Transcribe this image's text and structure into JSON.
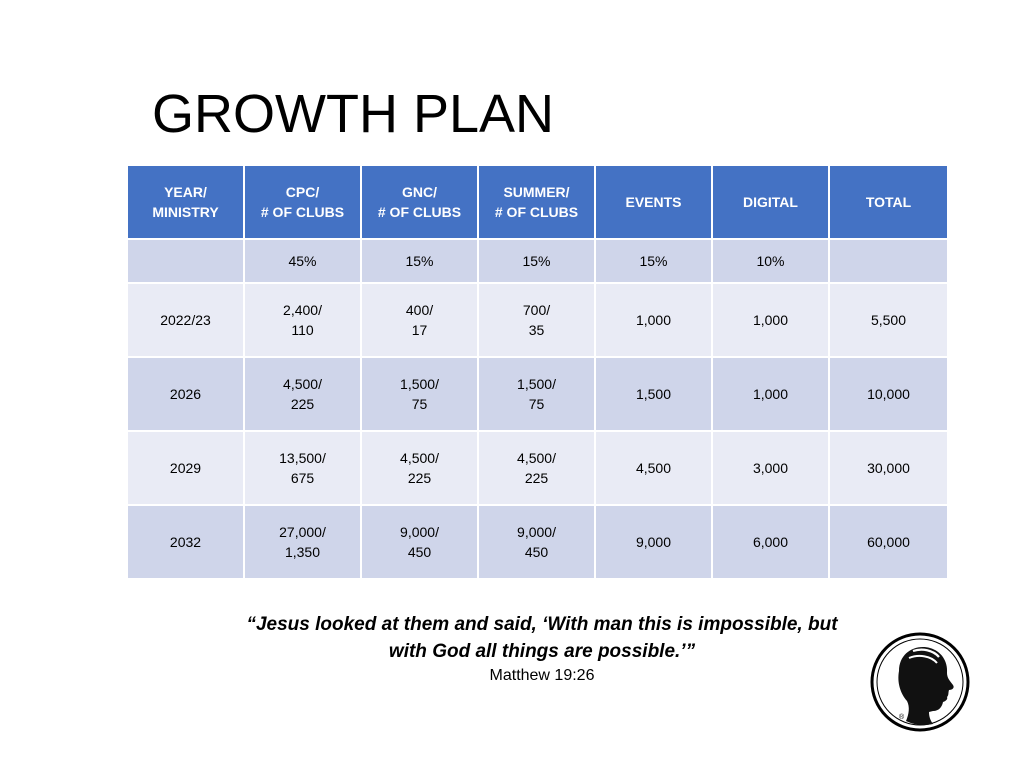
{
  "title": "GROWTH PLAN",
  "table": {
    "headers": [
      {
        "line1": "YEAR/",
        "line2": "MINISTRY"
      },
      {
        "line1": "CPC/",
        "line2": "# OF CLUBS"
      },
      {
        "line1": "GNC/",
        "line2": "# OF CLUBS"
      },
      {
        "line1": "SUMMER/",
        "line2": "# OF CLUBS"
      },
      {
        "line1": "EVENTS",
        "line2": ""
      },
      {
        "line1": "DIGITAL",
        "line2": ""
      },
      {
        "line1": "TOTAL",
        "line2": ""
      }
    ],
    "percent_row": [
      "",
      "45%",
      "15%",
      "15%",
      "15%",
      "10%",
      ""
    ],
    "rows": [
      {
        "year": "2022/23",
        "cpc": [
          "2,400/",
          "110"
        ],
        "gnc": [
          "400/",
          "17"
        ],
        "summer": [
          "700/",
          "35"
        ],
        "events": "1,000",
        "digital": "1,000",
        "total": "5,500"
      },
      {
        "year": "2026",
        "cpc": [
          "4,500/",
          "225"
        ],
        "gnc": [
          "1,500/",
          "75"
        ],
        "summer": [
          "1,500/",
          "75"
        ],
        "events": "1,500",
        "digital": "1,000",
        "total": "10,000"
      },
      {
        "year": "2029",
        "cpc": [
          "13,500/",
          "675"
        ],
        "gnc": [
          "4,500/",
          "225"
        ],
        "summer": [
          "4,500/",
          "225"
        ],
        "events": "4,500",
        "digital": "3,000",
        "total": "30,000"
      },
      {
        "year": "2032",
        "cpc": [
          "27,000/",
          "1,350"
        ],
        "gnc": [
          "9,000/",
          "450"
        ],
        "summer": [
          "9,000/",
          "450"
        ],
        "events": "9,000",
        "digital": "6,000",
        "total": "60,000"
      }
    ]
  },
  "quote": {
    "line1": "“Jesus looked at them and said, ‘With man this is impossible, but",
    "line2": "with God all things are possible.’”",
    "citation": "Matthew 19:26"
  },
  "logo": {
    "icon": "child-profile-logo-icon",
    "mark": "®"
  },
  "colors": {
    "header_bg": "#4472c4",
    "row_dark": "#cfd5ea",
    "row_light": "#e9ebf5"
  }
}
